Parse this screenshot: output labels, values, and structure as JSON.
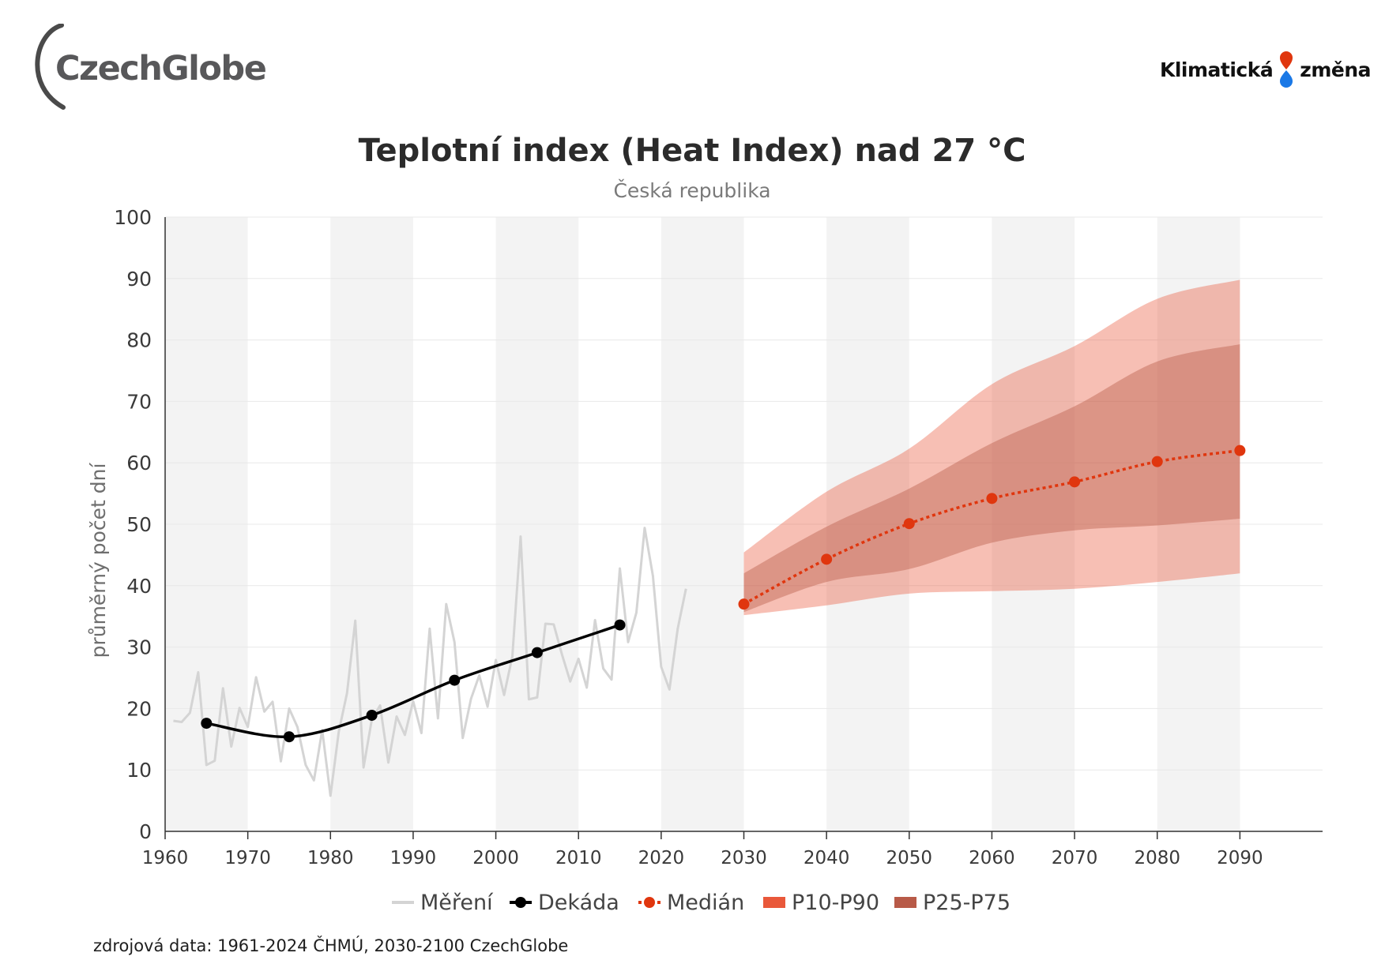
{
  "logos": {
    "left": "CzechGlobe",
    "right_part1": "Klimatická",
    "right_part2": "změna"
  },
  "footer": {
    "source": "zdrojová data: 1961-2024 ČHMÚ, 2030-2100 CzechGlobe"
  },
  "colors": {
    "measurement": "#d4d4d4",
    "decade": "#000000",
    "median": "#e0360e",
    "band_p10_p90": "#e9583a",
    "band_p25_p75": "#b85a48",
    "stripe": "#f3f3f3",
    "grid": "#e8e8e8"
  },
  "chart_data": {
    "type": "line",
    "title": "Teplotní index (Heat Index) nad 27 °C",
    "subtitle": "Česká republika",
    "xlabel": "",
    "ylabel": "průměrný počet dní",
    "xlim": [
      1960,
      2100
    ],
    "ylim": [
      0,
      100
    ],
    "x_ticks": [
      1960,
      1970,
      1980,
      1990,
      2000,
      2010,
      2020,
      2030,
      2040,
      2050,
      2060,
      2070,
      2080,
      2090
    ],
    "y_ticks": [
      0,
      10,
      20,
      30,
      40,
      50,
      60,
      70,
      80,
      90,
      100
    ],
    "grid": true,
    "legend_position": "bottom-center",
    "legend": [
      "Měření",
      "Dekáda",
      "Medián",
      "P10-P90",
      "P25-P75"
    ],
    "series": [
      {
        "name": "Měření",
        "type": "line",
        "x": [
          1961,
          1962,
          1963,
          1964,
          1965,
          1966,
          1967,
          1968,
          1969,
          1970,
          1971,
          1972,
          1973,
          1974,
          1975,
          1976,
          1977,
          1978,
          1979,
          1980,
          1981,
          1982,
          1983,
          1984,
          1985,
          1986,
          1987,
          1988,
          1989,
          1990,
          1991,
          1992,
          1993,
          1994,
          1995,
          1996,
          1997,
          1998,
          1999,
          2000,
          2001,
          2002,
          2003,
          2004,
          2005,
          2006,
          2007,
          2008,
          2009,
          2010,
          2011,
          2012,
          2013,
          2014,
          2015,
          2016,
          2017,
          2018,
          2019,
          2020,
          2021,
          2022,
          2023
        ],
        "values": [
          18,
          17.8,
          19.3,
          25.9,
          10.8,
          11.5,
          23.3,
          13.8,
          20.1,
          17,
          25.1,
          19.5,
          21.1,
          11.4,
          20,
          17,
          10.8,
          8.3,
          16.5,
          5.8,
          16.2,
          22.5,
          34.3,
          10.4,
          18.2,
          20.5,
          11.2,
          18.7,
          15.7,
          21.2,
          16,
          33,
          18.4,
          37,
          30.8,
          15.2,
          21.6,
          25.4,
          20.3,
          27.9,
          22.2,
          28.5,
          48,
          21.5,
          21.8,
          33.8,
          33.7,
          28.8,
          24.4,
          28.1,
          23.4,
          34.4,
          26.5,
          24.7,
          42.8,
          30.8,
          35.6,
          49.4,
          41.6,
          26.8,
          23.1,
          33,
          39.5
        ]
      },
      {
        "name": "Dekáda",
        "type": "line",
        "x": [
          1965,
          1975,
          1985,
          1995,
          2005,
          2015
        ],
        "values": [
          17.6,
          15.4,
          18.9,
          24.6,
          29.1,
          33.6
        ]
      },
      {
        "name": "Medián",
        "type": "line",
        "x": [
          2030,
          2040,
          2050,
          2060,
          2070,
          2080,
          2090
        ],
        "values": [
          37,
          44.3,
          50.1,
          54.2,
          56.9,
          60.2,
          62
        ]
      },
      {
        "name": "P10-P90",
        "type": "area",
        "x": [
          2030,
          2040,
          2050,
          2060,
          2070,
          2080,
          2090
        ],
        "lower": [
          35.2,
          36.8,
          38.7,
          39.1,
          39.5,
          40.6,
          42
        ],
        "upper": [
          45.4,
          55.3,
          62.3,
          72.8,
          79,
          86.7,
          89.8
        ]
      },
      {
        "name": "P25-P75",
        "type": "area",
        "x": [
          2030,
          2040,
          2050,
          2060,
          2070,
          2080,
          2090
        ],
        "lower": [
          35.7,
          40.6,
          42.7,
          47,
          49,
          49.8,
          50.9
        ],
        "upper": [
          42,
          49.6,
          55.8,
          63.2,
          69.2,
          76.5,
          79.3
        ]
      }
    ]
  }
}
